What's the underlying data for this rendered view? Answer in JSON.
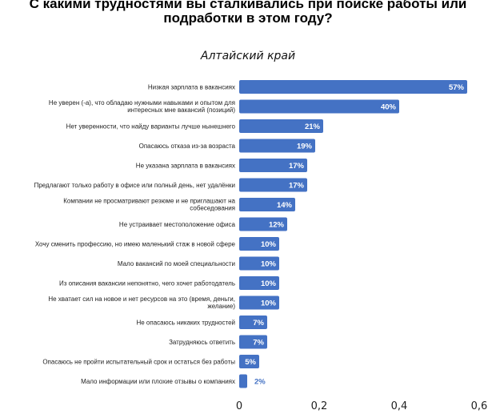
{
  "chart_data": {
    "type": "bar",
    "orientation": "horizontal",
    "title_line1": "С какими трудностями вы сталкивались при поиске работы или",
    "title_line2": "подработки в этом году?",
    "subtitle": "Алтайский край",
    "xlim": [
      0,
      0.6
    ],
    "xticks": [
      "0",
      "0,2",
      "0,4",
      "0,6"
    ],
    "grid": false,
    "bar_color": "#4472c4",
    "categories": [
      [
        "Низкая зарплата в вакансиях"
      ],
      [
        "Не уверен (-а), что обладаю нужными навыками и опытом для",
        "интересных мне вакансий (позиций)"
      ],
      [
        "Нет уверенности, что найду варианты лучше нынешнего"
      ],
      [
        "Опасаюсь отказа из-за возраста"
      ],
      [
        "Не указана зарплата в вакансиях"
      ],
      [
        "Предлагают только работу в офисе или полный день, нет удалёнки"
      ],
      [
        "Компании не просматривают резюме и не приглашают на",
        "собеседования"
      ],
      [
        "Не устраивает местоположение офиса"
      ],
      [
        "Хочу сменить профессию, но имею маленький стаж в новой сфере"
      ],
      [
        "Мало вакансий по моей специальности"
      ],
      [
        "Из описания вакансии непонятно, чего хочет работодатель"
      ],
      [
        "Не хватает сил на новое и нет ресурсов на это (время, деньги,",
        "желание)"
      ],
      [
        "Не опасаюсь никаких трудностей"
      ],
      [
        "Затрудняюсь ответить"
      ],
      [
        "Опасаюсь не пройти испытательный срок и остаться без работы"
      ],
      [
        "Мало информации или плохие отзывы о компаниях"
      ]
    ],
    "values": [
      0.57,
      0.4,
      0.21,
      0.19,
      0.17,
      0.17,
      0.14,
      0.12,
      0.1,
      0.1,
      0.1,
      0.1,
      0.07,
      0.07,
      0.05,
      0.02
    ],
    "labels": [
      "57%",
      "40%",
      "21%",
      "19%",
      "17%",
      "17%",
      "14%",
      "12%",
      "10%",
      "10%",
      "10%",
      "10%",
      "7%",
      "7%",
      "5%",
      "2%"
    ]
  }
}
